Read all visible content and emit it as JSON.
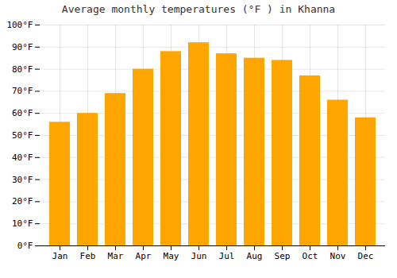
{
  "chart_data": {
    "type": "bar",
    "title": "Average monthly temperatures (°F ) in Khanna",
    "categories": [
      "Jan",
      "Feb",
      "Mar",
      "Apr",
      "May",
      "Jun",
      "Jul",
      "Aug",
      "Sep",
      "Oct",
      "Nov",
      "Dec"
    ],
    "values": [
      56,
      60,
      69,
      80,
      88,
      92,
      87,
      85,
      84,
      77,
      66,
      58
    ],
    "color": "#FFA500",
    "ylim": [
      0,
      100
    ],
    "yticks": [
      {
        "value": 0,
        "label": "0°F"
      },
      {
        "value": 10,
        "label": "10°F"
      },
      {
        "value": 20,
        "label": "20°F"
      },
      {
        "value": 30,
        "label": "30°F"
      },
      {
        "value": 40,
        "label": "40°F"
      },
      {
        "value": 50,
        "label": "50°F"
      },
      {
        "value": 60,
        "label": "60°F"
      },
      {
        "value": 70,
        "label": "70°F"
      },
      {
        "value": 80,
        "label": "80°F"
      },
      {
        "value": 90,
        "label": "90°F"
      },
      {
        "value": 100,
        "label": "100°F"
      }
    ],
    "grid": true
  }
}
